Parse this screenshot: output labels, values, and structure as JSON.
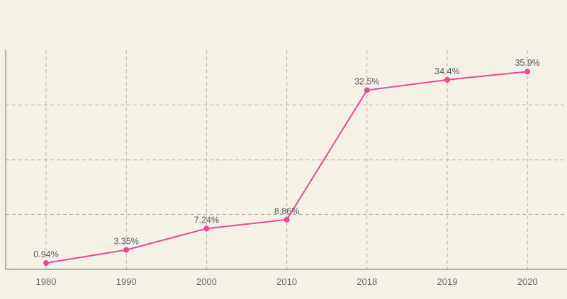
{
  "colors": {
    "background": "#f6f1e6",
    "series": "#e8489a",
    "grid": "#b6b0a4",
    "text": "#6a6a72"
  },
  "chart_data": {
    "type": "line",
    "categories": [
      "1980",
      "1990",
      "2000",
      "2010",
      "2018",
      "2019",
      "2020"
    ],
    "series": [
      {
        "values": [
          0.94,
          3.35,
          7.24,
          8.86,
          32.5,
          34.4,
          35.9
        ],
        "labels": [
          "0.94%",
          "3.35%",
          "7.24%",
          "8.86%",
          "32.5%",
          "34.4%",
          "35.9%"
        ]
      }
    ],
    "ylim": [
      -0.2,
      39.8
    ],
    "y_gridlines": [
      9.8,
      19.8,
      29.8
    ],
    "grid": true,
    "legend": "none"
  }
}
